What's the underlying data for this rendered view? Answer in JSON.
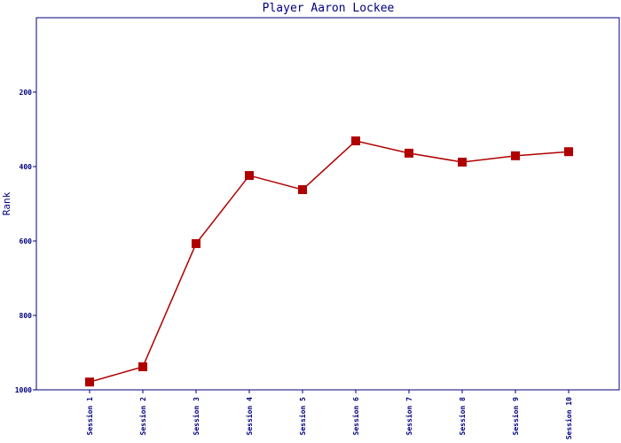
{
  "chart_data": {
    "type": "line",
    "title": "Player Aaron Lockee",
    "y_label": "Rank",
    "categories": [
      "Session 1",
      "Session 2",
      "Session 3",
      "Session 4",
      "Session 5",
      "Session 6",
      "Session 7",
      "Session 8",
      "Session 9",
      "Session 10"
    ],
    "series": [
      {
        "name": "Rank",
        "color": "#b00000",
        "values": [
          979,
          938,
          607,
          424,
          462,
          331,
          364,
          388,
          371,
          360
        ]
      }
    ],
    "ylim": [
      0,
      1000
    ],
    "y_inverted": true,
    "yticks": [
      200,
      400,
      600,
      800,
      1000
    ]
  }
}
